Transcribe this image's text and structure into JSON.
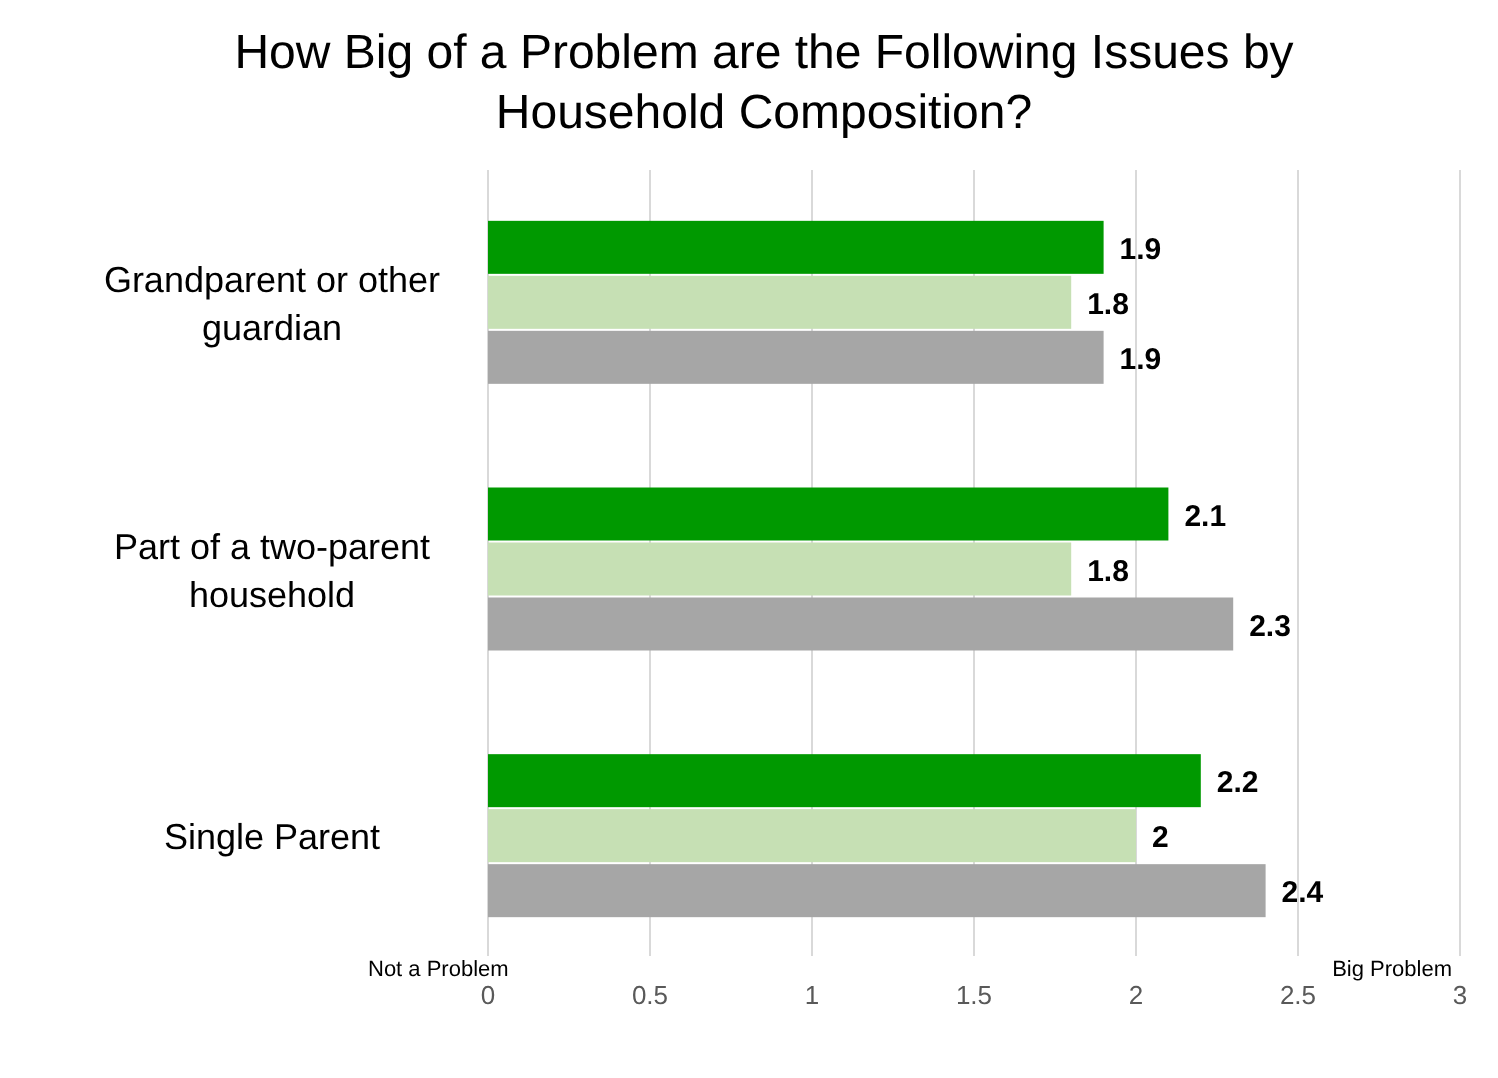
{
  "chart_data": {
    "type": "bar",
    "orientation": "horizontal",
    "title": "How Big of a Problem are the Following Issues by Household Composition?",
    "categories": [
      "Grandparent or other guardian",
      "Part of a two-parent household",
      "Single Parent"
    ],
    "series": [
      {
        "color": "#009900",
        "values": [
          1.9,
          2.1,
          2.2
        ]
      },
      {
        "color": "#c6e0b4",
        "values": [
          1.8,
          1.8,
          2
        ]
      },
      {
        "color": "#a6a6a6",
        "values": [
          1.9,
          2.3,
          2.4
        ]
      }
    ],
    "xlim": [
      0,
      3
    ],
    "xticks": [
      0,
      0.5,
      1,
      1.5,
      2,
      2.5,
      3
    ],
    "grid": "x",
    "data_labels": true,
    "annotations": [
      "Not a Problem",
      "Big Problem"
    ]
  }
}
